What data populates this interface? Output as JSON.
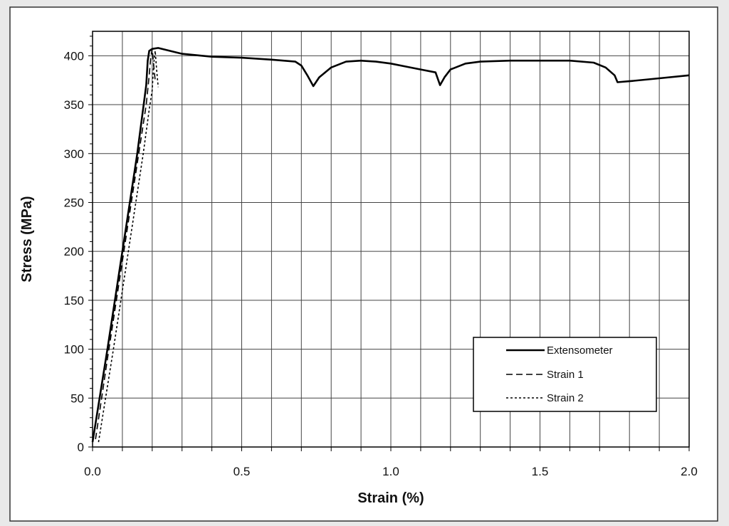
{
  "chart_data": {
    "type": "line",
    "title": "",
    "xlabel": "Strain (%)",
    "ylabel": "Stress (MPa)",
    "xlim": [
      0,
      2.0
    ],
    "ylim": [
      0,
      425
    ],
    "x_tick_labels": [
      "0.0",
      "0.5",
      "1.0",
      "1.5",
      "2.0"
    ],
    "y_tick_labels": [
      "0",
      "50",
      "100",
      "150",
      "200",
      "250",
      "300",
      "350",
      "400"
    ],
    "grid": true,
    "legend_position": "lower-right",
    "series": [
      {
        "name": "Extensometer",
        "style": "solid",
        "color": "#000000",
        "points": [
          [
            0.0,
            5
          ],
          [
            0.05,
            100
          ],
          [
            0.1,
            200
          ],
          [
            0.15,
            300
          ],
          [
            0.18,
            370
          ],
          [
            0.185,
            395
          ],
          [
            0.19,
            405
          ],
          [
            0.2,
            407
          ],
          [
            0.22,
            408
          ],
          [
            0.26,
            405
          ],
          [
            0.3,
            402
          ],
          [
            0.4,
            399
          ],
          [
            0.5,
            398
          ],
          [
            0.6,
            396
          ],
          [
            0.68,
            394
          ],
          [
            0.7,
            390
          ],
          [
            0.72,
            380
          ],
          [
            0.74,
            369
          ],
          [
            0.76,
            378
          ],
          [
            0.8,
            388
          ],
          [
            0.85,
            394
          ],
          [
            0.9,
            395
          ],
          [
            0.95,
            394
          ],
          [
            1.0,
            392
          ],
          [
            1.05,
            389
          ],
          [
            1.1,
            386
          ],
          [
            1.15,
            383
          ],
          [
            1.165,
            370
          ],
          [
            1.18,
            378
          ],
          [
            1.2,
            386
          ],
          [
            1.25,
            392
          ],
          [
            1.3,
            394
          ],
          [
            1.4,
            395
          ],
          [
            1.5,
            395
          ],
          [
            1.6,
            395
          ],
          [
            1.68,
            393
          ],
          [
            1.72,
            388
          ],
          [
            1.75,
            380
          ],
          [
            1.76,
            373
          ],
          [
            1.8,
            374
          ],
          [
            1.9,
            377
          ],
          [
            2.0,
            380
          ]
        ]
      },
      {
        "name": "Strain 1",
        "style": "dashed",
        "color": "#000000",
        "points": [
          [
            0.01,
            8
          ],
          [
            0.05,
            90
          ],
          [
            0.1,
            190
          ],
          [
            0.15,
            290
          ],
          [
            0.18,
            350
          ],
          [
            0.19,
            380
          ],
          [
            0.195,
            398
          ],
          [
            0.2,
            407
          ],
          [
            0.205,
            390
          ],
          [
            0.21,
            375
          ]
        ]
      },
      {
        "name": "Strain 2",
        "style": "dotted",
        "color": "#000000",
        "points": [
          [
            0.02,
            5
          ],
          [
            0.07,
            100
          ],
          [
            0.12,
            200
          ],
          [
            0.17,
            300
          ],
          [
            0.19,
            345
          ],
          [
            0.2,
            365
          ],
          [
            0.205,
            392
          ],
          [
            0.21,
            405
          ],
          [
            0.215,
            385
          ],
          [
            0.22,
            368
          ]
        ]
      }
    ]
  }
}
